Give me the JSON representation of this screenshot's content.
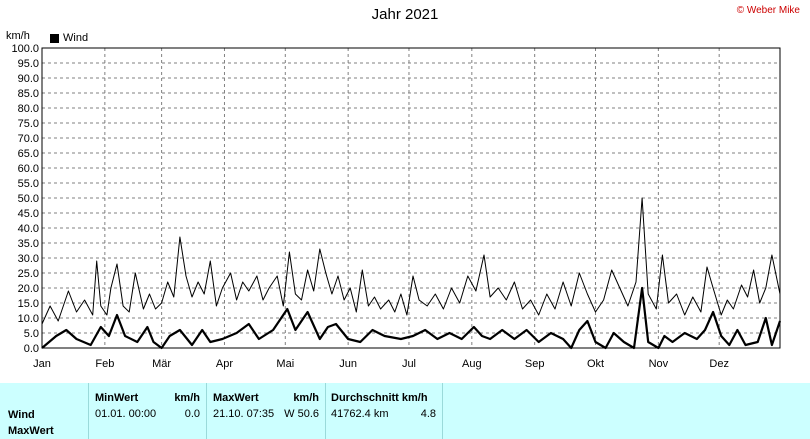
{
  "title": "Jahr 2021",
  "copyright": "© Weber Mike",
  "unit_label": "km/h",
  "legend_label": "Wind",
  "stats": {
    "row_labels": [
      "Wind",
      "MaxWert"
    ],
    "min": {
      "header": "MinWert",
      "unit": "km/h",
      "date": "01.01.  00:00",
      "value": "0.0"
    },
    "max": {
      "header": "MaxWert",
      "unit": "km/h",
      "date": "21.10.  07:35",
      "value": "W 50.6"
    },
    "avg": {
      "header": "Durchschnitt km/h",
      "distance": "41762.4 km",
      "value": "4.8"
    }
  },
  "colors": {
    "accent": "#cc0000",
    "stats_bg": "#ccffff",
    "series": "#000000"
  },
  "chart_data": {
    "type": "line",
    "title": "Jahr 2021",
    "ylabel": "km/h",
    "ylim": [
      0,
      100
    ],
    "ytick_step": 5,
    "grid": true,
    "legend_position": "top-left",
    "x_categories": [
      "Jan",
      "Feb",
      "Mär",
      "Apr",
      "Mai",
      "Jun",
      "Jul",
      "Aug",
      "Sep",
      "Okt",
      "Nov",
      "Dez"
    ],
    "x_domain_days": [
      1,
      365
    ],
    "series": [
      {
        "name": "Wind",
        "style": "thick",
        "points": [
          [
            1,
            0
          ],
          [
            8,
            4
          ],
          [
            13,
            6
          ],
          [
            18,
            3
          ],
          [
            25,
            1
          ],
          [
            30,
            7
          ],
          [
            34,
            4
          ],
          [
            38,
            11
          ],
          [
            42,
            4
          ],
          [
            48,
            2
          ],
          [
            53,
            7
          ],
          [
            56,
            2
          ],
          [
            60,
            0
          ],
          [
            64,
            4
          ],
          [
            69,
            6
          ],
          [
            75,
            1
          ],
          [
            80,
            6
          ],
          [
            84,
            2
          ],
          [
            90,
            3
          ],
          [
            97,
            5
          ],
          [
            103,
            8
          ],
          [
            108,
            3
          ],
          [
            115,
            6
          ],
          [
            122,
            13
          ],
          [
            126,
            6
          ],
          [
            132,
            12
          ],
          [
            138,
            3
          ],
          [
            142,
            7
          ],
          [
            146,
            8
          ],
          [
            152,
            3
          ],
          [
            158,
            2
          ],
          [
            164,
            6
          ],
          [
            170,
            4
          ],
          [
            178,
            3
          ],
          [
            184,
            4
          ],
          [
            190,
            6
          ],
          [
            196,
            3
          ],
          [
            202,
            5
          ],
          [
            208,
            3
          ],
          [
            214,
            7
          ],
          [
            218,
            4
          ],
          [
            222,
            3
          ],
          [
            228,
            6
          ],
          [
            234,
            3
          ],
          [
            240,
            6
          ],
          [
            246,
            2
          ],
          [
            252,
            5
          ],
          [
            258,
            3
          ],
          [
            262,
            0
          ],
          [
            266,
            6
          ],
          [
            270,
            9
          ],
          [
            274,
            2
          ],
          [
            279,
            0
          ],
          [
            283,
            5
          ],
          [
            288,
            2
          ],
          [
            293,
            0
          ],
          [
            297,
            20
          ],
          [
            300,
            2
          ],
          [
            305,
            0
          ],
          [
            308,
            4
          ],
          [
            312,
            2
          ],
          [
            318,
            5
          ],
          [
            324,
            3
          ],
          [
            328,
            6
          ],
          [
            332,
            12
          ],
          [
            336,
            4
          ],
          [
            340,
            1
          ],
          [
            344,
            6
          ],
          [
            348,
            1
          ],
          [
            354,
            2
          ],
          [
            358,
            10
          ],
          [
            361,
            1
          ],
          [
            365,
            9
          ]
        ]
      },
      {
        "name": "MaxWert",
        "style": "thin",
        "points": [
          [
            1,
            8
          ],
          [
            5,
            14
          ],
          [
            9,
            9
          ],
          [
            14,
            19
          ],
          [
            18,
            12
          ],
          [
            22,
            16
          ],
          [
            26,
            11
          ],
          [
            28,
            29
          ],
          [
            30,
            14
          ],
          [
            33,
            11
          ],
          [
            35,
            20
          ],
          [
            38,
            28
          ],
          [
            41,
            14
          ],
          [
            44,
            12
          ],
          [
            47,
            25
          ],
          [
            51,
            13
          ],
          [
            54,
            18
          ],
          [
            57,
            13
          ],
          [
            60,
            15
          ],
          [
            63,
            22
          ],
          [
            66,
            17
          ],
          [
            69,
            37
          ],
          [
            72,
            24
          ],
          [
            75,
            17
          ],
          [
            78,
            22
          ],
          [
            81,
            18
          ],
          [
            84,
            29
          ],
          [
            87,
            14
          ],
          [
            90,
            20
          ],
          [
            94,
            25
          ],
          [
            97,
            16
          ],
          [
            100,
            22
          ],
          [
            103,
            19
          ],
          [
            107,
            24
          ],
          [
            110,
            16
          ],
          [
            113,
            20
          ],
          [
            117,
            24
          ],
          [
            120,
            14
          ],
          [
            123,
            32
          ],
          [
            126,
            18
          ],
          [
            129,
            16
          ],
          [
            132,
            26
          ],
          [
            135,
            19
          ],
          [
            138,
            33
          ],
          [
            141,
            25
          ],
          [
            144,
            18
          ],
          [
            147,
            24
          ],
          [
            150,
            16
          ],
          [
            153,
            20
          ],
          [
            156,
            12
          ],
          [
            159,
            26
          ],
          [
            162,
            14
          ],
          [
            165,
            17
          ],
          [
            168,
            13
          ],
          [
            172,
            16
          ],
          [
            175,
            12
          ],
          [
            178,
            18
          ],
          [
            181,
            11
          ],
          [
            184,
            24
          ],
          [
            187,
            16
          ],
          [
            191,
            14
          ],
          [
            195,
            18
          ],
          [
            199,
            13
          ],
          [
            203,
            20
          ],
          [
            207,
            15
          ],
          [
            211,
            24
          ],
          [
            215,
            19
          ],
          [
            219,
            31
          ],
          [
            222,
            17
          ],
          [
            226,
            20
          ],
          [
            230,
            16
          ],
          [
            234,
            22
          ],
          [
            238,
            13
          ],
          [
            242,
            16
          ],
          [
            246,
            11
          ],
          [
            250,
            18
          ],
          [
            254,
            13
          ],
          [
            258,
            22
          ],
          [
            262,
            14
          ],
          [
            266,
            25
          ],
          [
            270,
            18
          ],
          [
            274,
            12
          ],
          [
            278,
            16
          ],
          [
            282,
            26
          ],
          [
            286,
            20
          ],
          [
            290,
            14
          ],
          [
            294,
            22
          ],
          [
            297,
            50
          ],
          [
            300,
            18
          ],
          [
            304,
            13
          ],
          [
            307,
            31
          ],
          [
            310,
            15
          ],
          [
            314,
            18
          ],
          [
            318,
            11
          ],
          [
            322,
            17
          ],
          [
            326,
            12
          ],
          [
            329,
            27
          ],
          [
            332,
            20
          ],
          [
            336,
            11
          ],
          [
            339,
            16
          ],
          [
            342,
            13
          ],
          [
            346,
            21
          ],
          [
            349,
            17
          ],
          [
            352,
            26
          ],
          [
            355,
            15
          ],
          [
            358,
            20
          ],
          [
            361,
            31
          ],
          [
            365,
            18
          ]
        ]
      }
    ]
  }
}
